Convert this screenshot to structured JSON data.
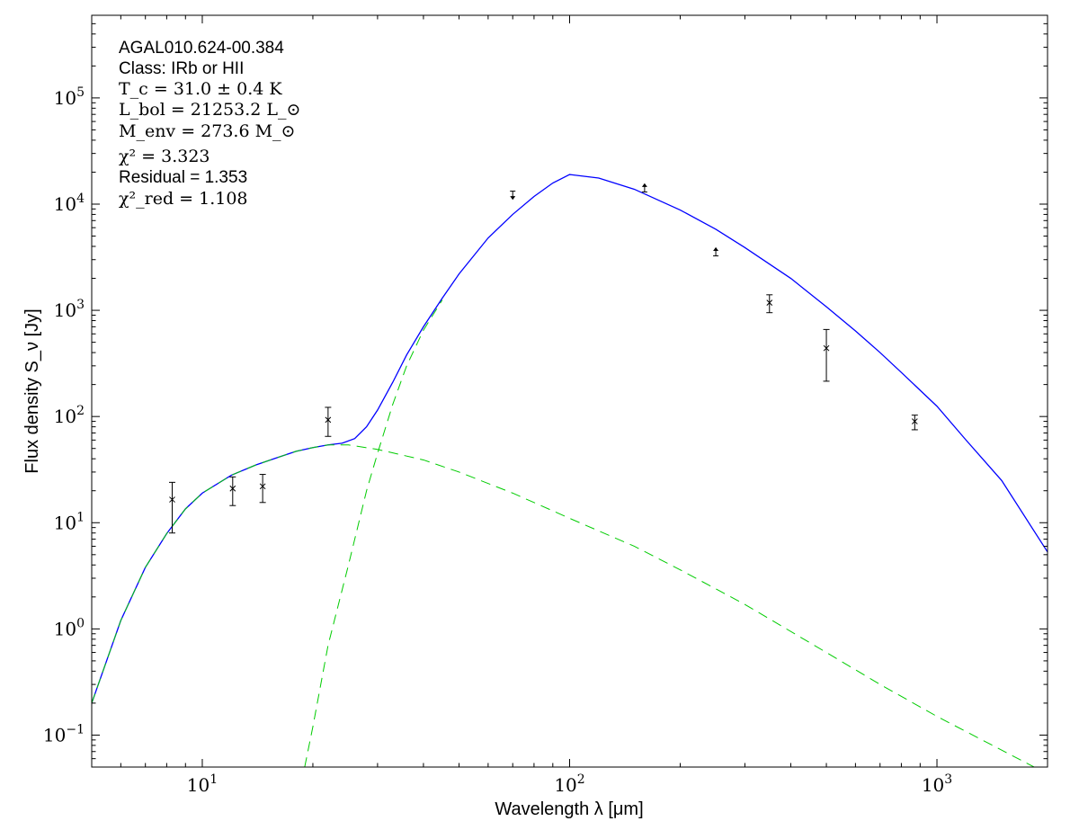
{
  "chart_data": {
    "type": "scatter",
    "xscale": "log",
    "yscale": "log",
    "xlim": [
      5,
      2000
    ],
    "ylim": [
      0.05,
      600000
    ],
    "xlabel": "Wavelength λ [μm]",
    "ylabel": "Flux density S_ν [Jy]",
    "x_ticks": [
      {
        "value": 10,
        "label": "10^1"
      },
      {
        "value": 100,
        "label": "10^2"
      },
      {
        "value": 1000,
        "label": "10^3"
      }
    ],
    "y_ticks": [
      {
        "value": 0.1,
        "label": "10^-1"
      },
      {
        "value": 1,
        "label": "10^0"
      },
      {
        "value": 10,
        "label": "10^1"
      },
      {
        "value": 100,
        "label": "10^2"
      },
      {
        "value": 1000,
        "label": "10^3"
      },
      {
        "value": 10000,
        "label": "10^4"
      },
      {
        "value": 100000,
        "label": "10^5"
      }
    ],
    "annotations": {
      "source": "AGAL010.624-00.384",
      "class_line": "Class: IRb or HII",
      "tc": "T_c = 31.0 ± 0.4 K",
      "lbol": "L_bol = 21253.2 L_⊙",
      "menv": "M_env = 273.6 M_⊙",
      "chi2": "χ² = 3.323",
      "residual": "Residual = 1.353",
      "chi2red": "χ²_red = 1.108"
    },
    "measurements": [
      {
        "x": 8.28,
        "y": 16.5,
        "lo": 8.0,
        "hi": 24.0
      },
      {
        "x": 12.1,
        "y": 21.0,
        "lo": 14.5,
        "hi": 27.0
      },
      {
        "x": 14.6,
        "y": 22.0,
        "lo": 15.5,
        "hi": 28.5
      },
      {
        "x": 22.0,
        "y": 93.0,
        "lo": 65.0,
        "hi": 122.0
      },
      {
        "x": 350,
        "y": 1180,
        "lo": 950,
        "hi": 1400
      },
      {
        "x": 500,
        "y": 440,
        "lo": 215,
        "hi": 660
      },
      {
        "x": 870,
        "y": 90,
        "lo": 75,
        "hi": 103
      }
    ],
    "limits": [
      {
        "x": 70,
        "y": 12500,
        "direction": "upper"
      },
      {
        "x": 160,
        "y": 13800,
        "direction": "lower"
      },
      {
        "x": 250,
        "y": 3450,
        "direction": "lower"
      }
    ],
    "series": [
      {
        "style": "solid",
        "color": "#0000ff",
        "points": [
          [
            5,
            0.2
          ],
          [
            6,
            1.2
          ],
          [
            7,
            3.8
          ],
          [
            8,
            7.9
          ],
          [
            9,
            13.5
          ],
          [
            10,
            19
          ],
          [
            12,
            28
          ],
          [
            14,
            35
          ],
          [
            16,
            41
          ],
          [
            18,
            47
          ],
          [
            20,
            51
          ],
          [
            22,
            54
          ],
          [
            24,
            56
          ],
          [
            26,
            62
          ],
          [
            28,
            80
          ],
          [
            30,
            115
          ],
          [
            33,
            210
          ],
          [
            36,
            380
          ],
          [
            40,
            700
          ],
          [
            45,
            1300
          ],
          [
            50,
            2200
          ],
          [
            60,
            4800
          ],
          [
            70,
            8000
          ],
          [
            80,
            11800
          ],
          [
            90,
            15800
          ],
          [
            100,
            19000
          ],
          [
            120,
            17600
          ],
          [
            150,
            13800
          ],
          [
            200,
            8800
          ],
          [
            250,
            5800
          ],
          [
            300,
            3900
          ],
          [
            400,
            2000
          ],
          [
            500,
            1080
          ],
          [
            600,
            640
          ],
          [
            700,
            400
          ],
          [
            800,
            260
          ],
          [
            1000,
            125
          ],
          [
            1200,
            60
          ],
          [
            1500,
            25
          ],
          [
            2000,
            5.3
          ]
        ]
      },
      {
        "style": "dashed",
        "color": "#00cc00",
        "points": [
          [
            5,
            0.2
          ],
          [
            6,
            1.2
          ],
          [
            7,
            3.8
          ],
          [
            8,
            7.9
          ],
          [
            9,
            13.5
          ],
          [
            10,
            19
          ],
          [
            12,
            28
          ],
          [
            14,
            35
          ],
          [
            16,
            41
          ],
          [
            18,
            47
          ],
          [
            20,
            51
          ],
          [
            22,
            54
          ],
          [
            25,
            54
          ],
          [
            30,
            49
          ],
          [
            40,
            39
          ],
          [
            50,
            30
          ],
          [
            70,
            19
          ],
          [
            100,
            11
          ],
          [
            150,
            6
          ],
          [
            200,
            3.6
          ],
          [
            300,
            1.7
          ],
          [
            500,
            0.6
          ],
          [
            700,
            0.3
          ],
          [
            1000,
            0.15
          ],
          [
            2000,
            0.043
          ]
        ]
      },
      {
        "style": "dashed",
        "color": "#00cc00",
        "points": [
          [
            19,
            0.05
          ],
          [
            20,
            0.12
          ],
          [
            22,
            0.7
          ],
          [
            25,
            4
          ],
          [
            28,
            20
          ],
          [
            30,
            45
          ],
          [
            33,
            130
          ],
          [
            36,
            300
          ],
          [
            40,
            650
          ],
          [
            45,
            1250
          ]
        ]
      }
    ]
  }
}
